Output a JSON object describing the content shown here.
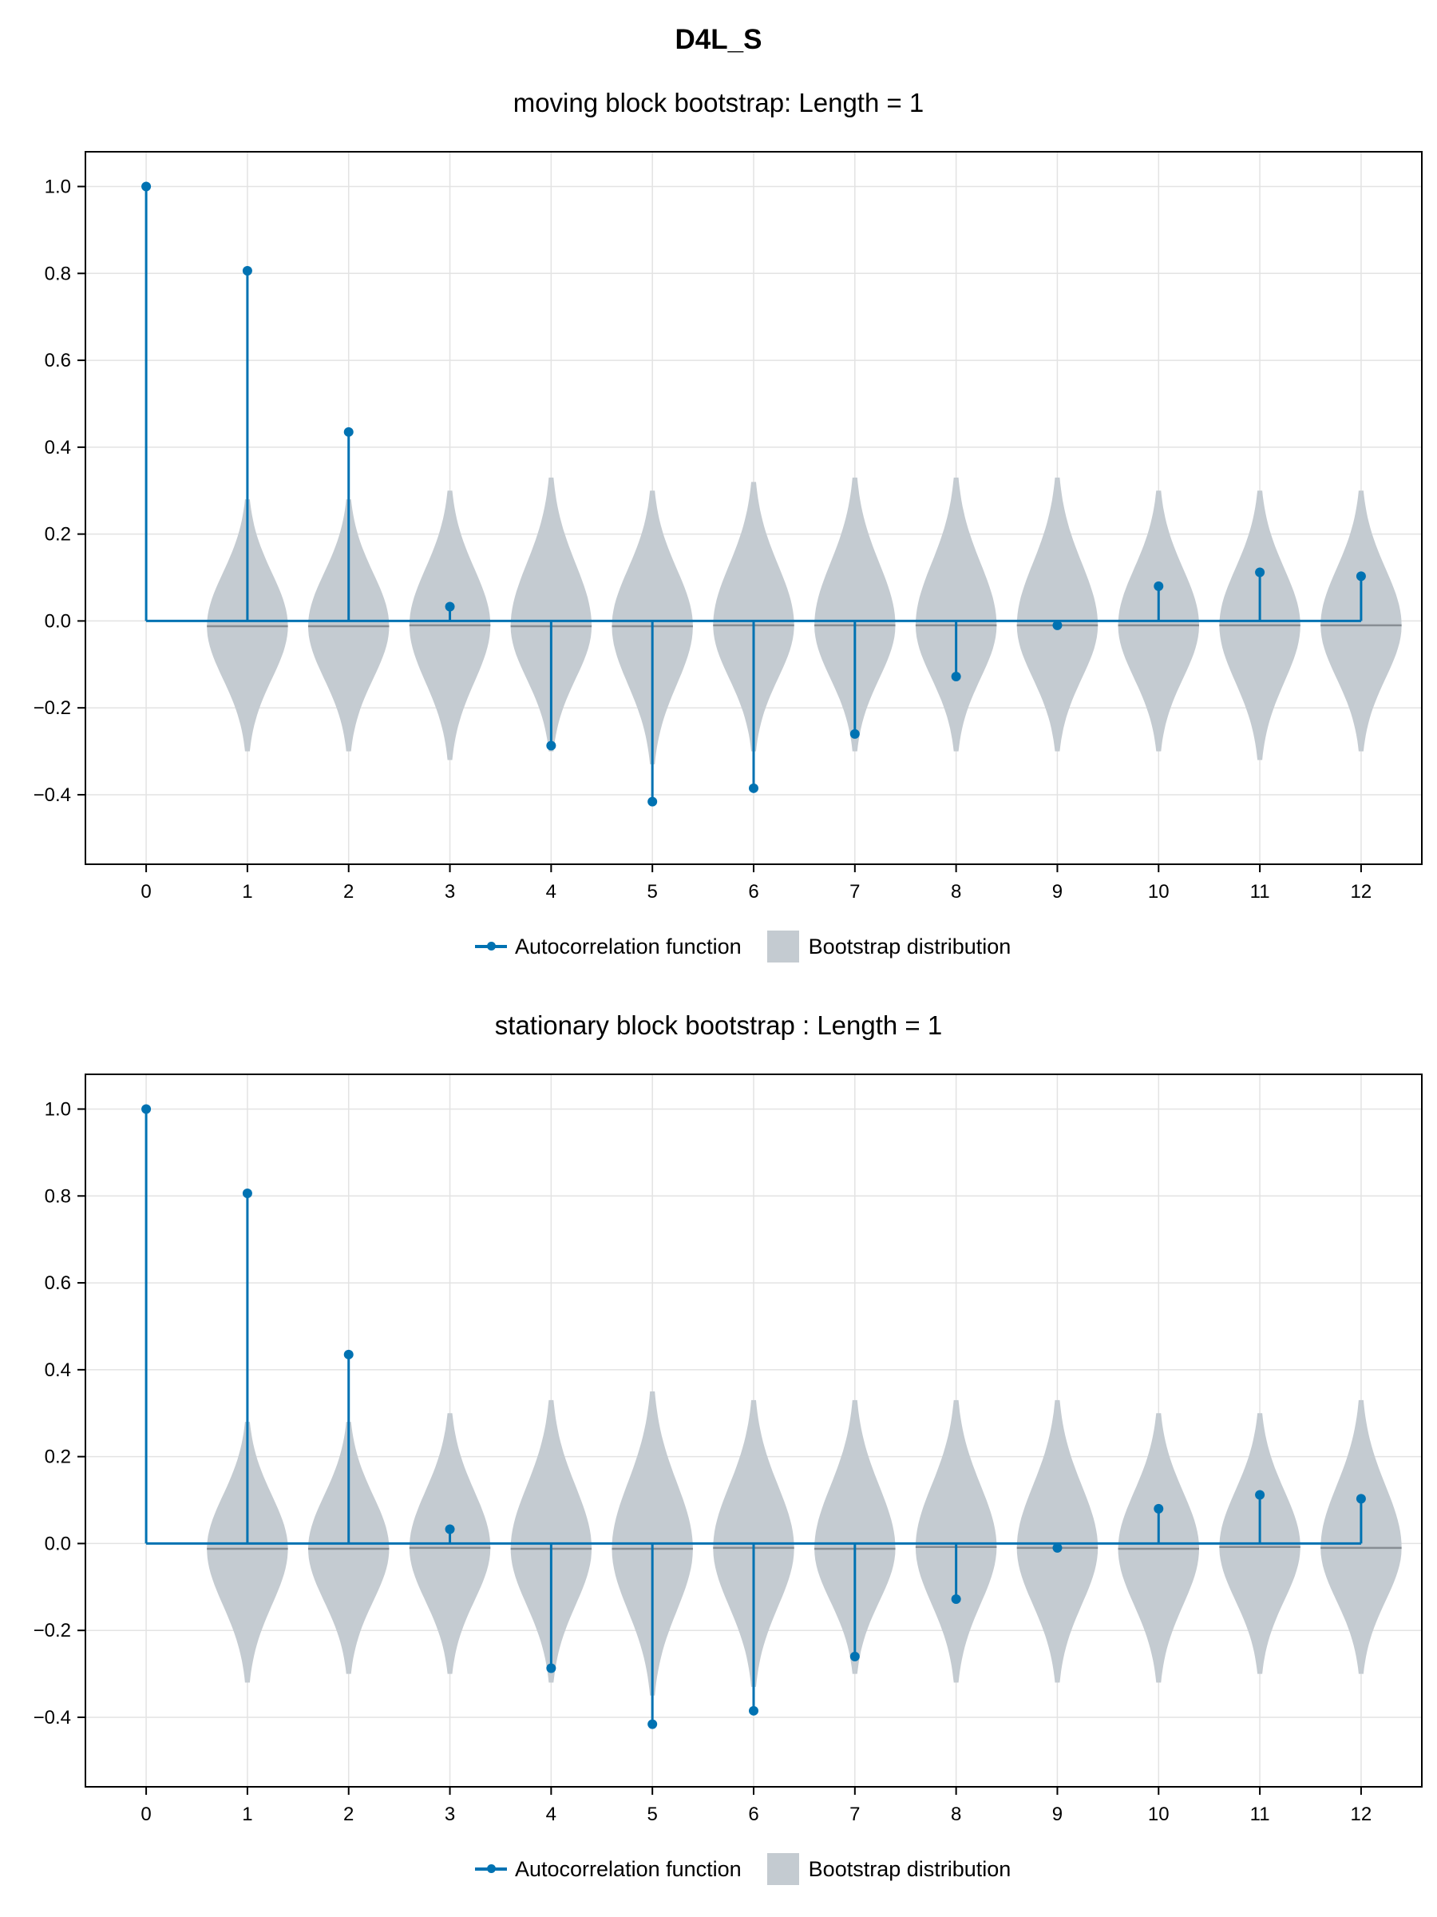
{
  "figure": {
    "title": "D4L_S"
  },
  "colors": {
    "acf": "#0072b2",
    "bootstrap": "#c4cbd1",
    "median": "#888e94",
    "grid": "#e3e3e3",
    "frame": "#000000"
  },
  "chart_data": [
    {
      "type": "stem",
      "title": "moving block bootstrap: Length = 1",
      "xlabel": "",
      "ylabel": "",
      "xlim": [
        -0.6,
        12.6
      ],
      "ylim": [
        -0.56,
        1.08
      ],
      "x_ticks": [
        0,
        1,
        2,
        3,
        4,
        5,
        6,
        7,
        8,
        9,
        10,
        11,
        12
      ],
      "y_ticks": [
        -0.4,
        -0.2,
        0.0,
        0.2,
        0.4,
        0.6,
        0.8,
        1.0
      ],
      "y_tick_labels": [
        "−0.4",
        "−0.2",
        "0.0",
        "0.2",
        "0.4",
        "0.6",
        "0.8",
        "1.0"
      ],
      "grid": true,
      "legend": {
        "placement": "bottom-center",
        "entries": [
          "Autocorrelation function",
          "Bootstrap distribution"
        ]
      },
      "series": [
        {
          "name": "Autocorrelation function",
          "x": [
            0,
            1,
            2,
            3,
            4,
            5,
            6,
            7,
            8,
            9,
            10,
            11,
            12
          ],
          "y": [
            1.0,
            0.806,
            0.435,
            0.033,
            -0.287,
            -0.416,
            -0.385,
            -0.26,
            -0.128,
            -0.01,
            0.08,
            0.112,
            0.103
          ]
        },
        {
          "name": "Bootstrap distribution",
          "type": "violin",
          "x": [
            1,
            2,
            3,
            4,
            5,
            6,
            7,
            8,
            9,
            10,
            11,
            12
          ],
          "median": [
            -0.012,
            -0.012,
            -0.01,
            -0.012,
            -0.012,
            -0.01,
            -0.01,
            -0.01,
            -0.01,
            -0.01,
            -0.01,
            -0.01
          ],
          "min": [
            -0.3,
            -0.3,
            -0.32,
            -0.3,
            -0.33,
            -0.3,
            -0.3,
            -0.3,
            -0.3,
            -0.3,
            -0.32,
            -0.3
          ],
          "max": [
            0.28,
            0.28,
            0.3,
            0.33,
            0.3,
            0.32,
            0.33,
            0.33,
            0.33,
            0.3,
            0.3,
            0.3
          ]
        }
      ]
    },
    {
      "type": "stem",
      "title": "stationary block bootstrap : Length = 1",
      "xlabel": "",
      "ylabel": "",
      "xlim": [
        -0.6,
        12.6
      ],
      "ylim": [
        -0.56,
        1.08
      ],
      "x_ticks": [
        0,
        1,
        2,
        3,
        4,
        5,
        6,
        7,
        8,
        9,
        10,
        11,
        12
      ],
      "y_ticks": [
        -0.4,
        -0.2,
        0.0,
        0.2,
        0.4,
        0.6,
        0.8,
        1.0
      ],
      "y_tick_labels": [
        "−0.4",
        "−0.2",
        "0.0",
        "0.2",
        "0.4",
        "0.6",
        "0.8",
        "1.0"
      ],
      "grid": true,
      "legend": {
        "placement": "bottom-center",
        "entries": [
          "Autocorrelation function",
          "Bootstrap distribution"
        ]
      },
      "series": [
        {
          "name": "Autocorrelation function",
          "x": [
            0,
            1,
            2,
            3,
            4,
            5,
            6,
            7,
            8,
            9,
            10,
            11,
            12
          ],
          "y": [
            1.0,
            0.806,
            0.435,
            0.033,
            -0.287,
            -0.416,
            -0.385,
            -0.26,
            -0.128,
            -0.01,
            0.08,
            0.112,
            0.103
          ]
        },
        {
          "name": "Bootstrap distribution",
          "type": "violin",
          "x": [
            1,
            2,
            3,
            4,
            5,
            6,
            7,
            8,
            9,
            10,
            11,
            12
          ],
          "median": [
            -0.012,
            -0.012,
            -0.01,
            -0.012,
            -0.012,
            -0.01,
            -0.012,
            -0.008,
            -0.01,
            -0.012,
            -0.008,
            -0.01
          ],
          "min": [
            -0.32,
            -0.3,
            -0.3,
            -0.32,
            -0.35,
            -0.33,
            -0.3,
            -0.32,
            -0.32,
            -0.32,
            -0.3,
            -0.3
          ],
          "max": [
            0.28,
            0.28,
            0.3,
            0.33,
            0.35,
            0.33,
            0.33,
            0.33,
            0.33,
            0.3,
            0.3,
            0.33
          ]
        }
      ]
    }
  ]
}
